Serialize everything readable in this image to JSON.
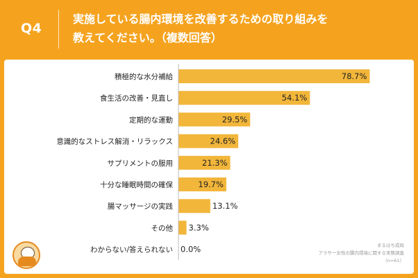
{
  "header": {
    "question_label": "Q4",
    "title_line1": "実施している腸内環境を改善するための取り組みを",
    "title_line2": "教えてください。（複数回答）"
  },
  "source": {
    "line1": "まるはち成局",
    "line2": "アラサー女性の腸内環境に関する実態調査",
    "line3": "（n=61）"
  },
  "logo": {
    "icon": "mascot-logo-icon"
  },
  "colors": {
    "background": "#f5a31f",
    "bar": "#f2b63a",
    "text": "#222222"
  },
  "chart_data": {
    "type": "bar",
    "orientation": "horizontal",
    "title": "",
    "xlabel": "",
    "ylabel": "",
    "xlim": [
      0,
      100
    ],
    "categories": [
      "積極的な水分補給",
      "食生活の改善・見直し",
      "定期的な運動",
      "意識的なストレス解消・リラックス",
      "サプリメントの服用",
      "十分な睡眠時間の確保",
      "腸マッサージの実践",
      "その他",
      "わからない/答えられない"
    ],
    "values": [
      78.7,
      54.1,
      29.5,
      24.6,
      21.3,
      19.7,
      13.1,
      3.3,
      0.0
    ],
    "value_labels": [
      "78.7%",
      "54.1%",
      "29.5%",
      "24.6%",
      "21.3%",
      "19.7%",
      "13.1%",
      "3.3%",
      "0.0%"
    ]
  }
}
